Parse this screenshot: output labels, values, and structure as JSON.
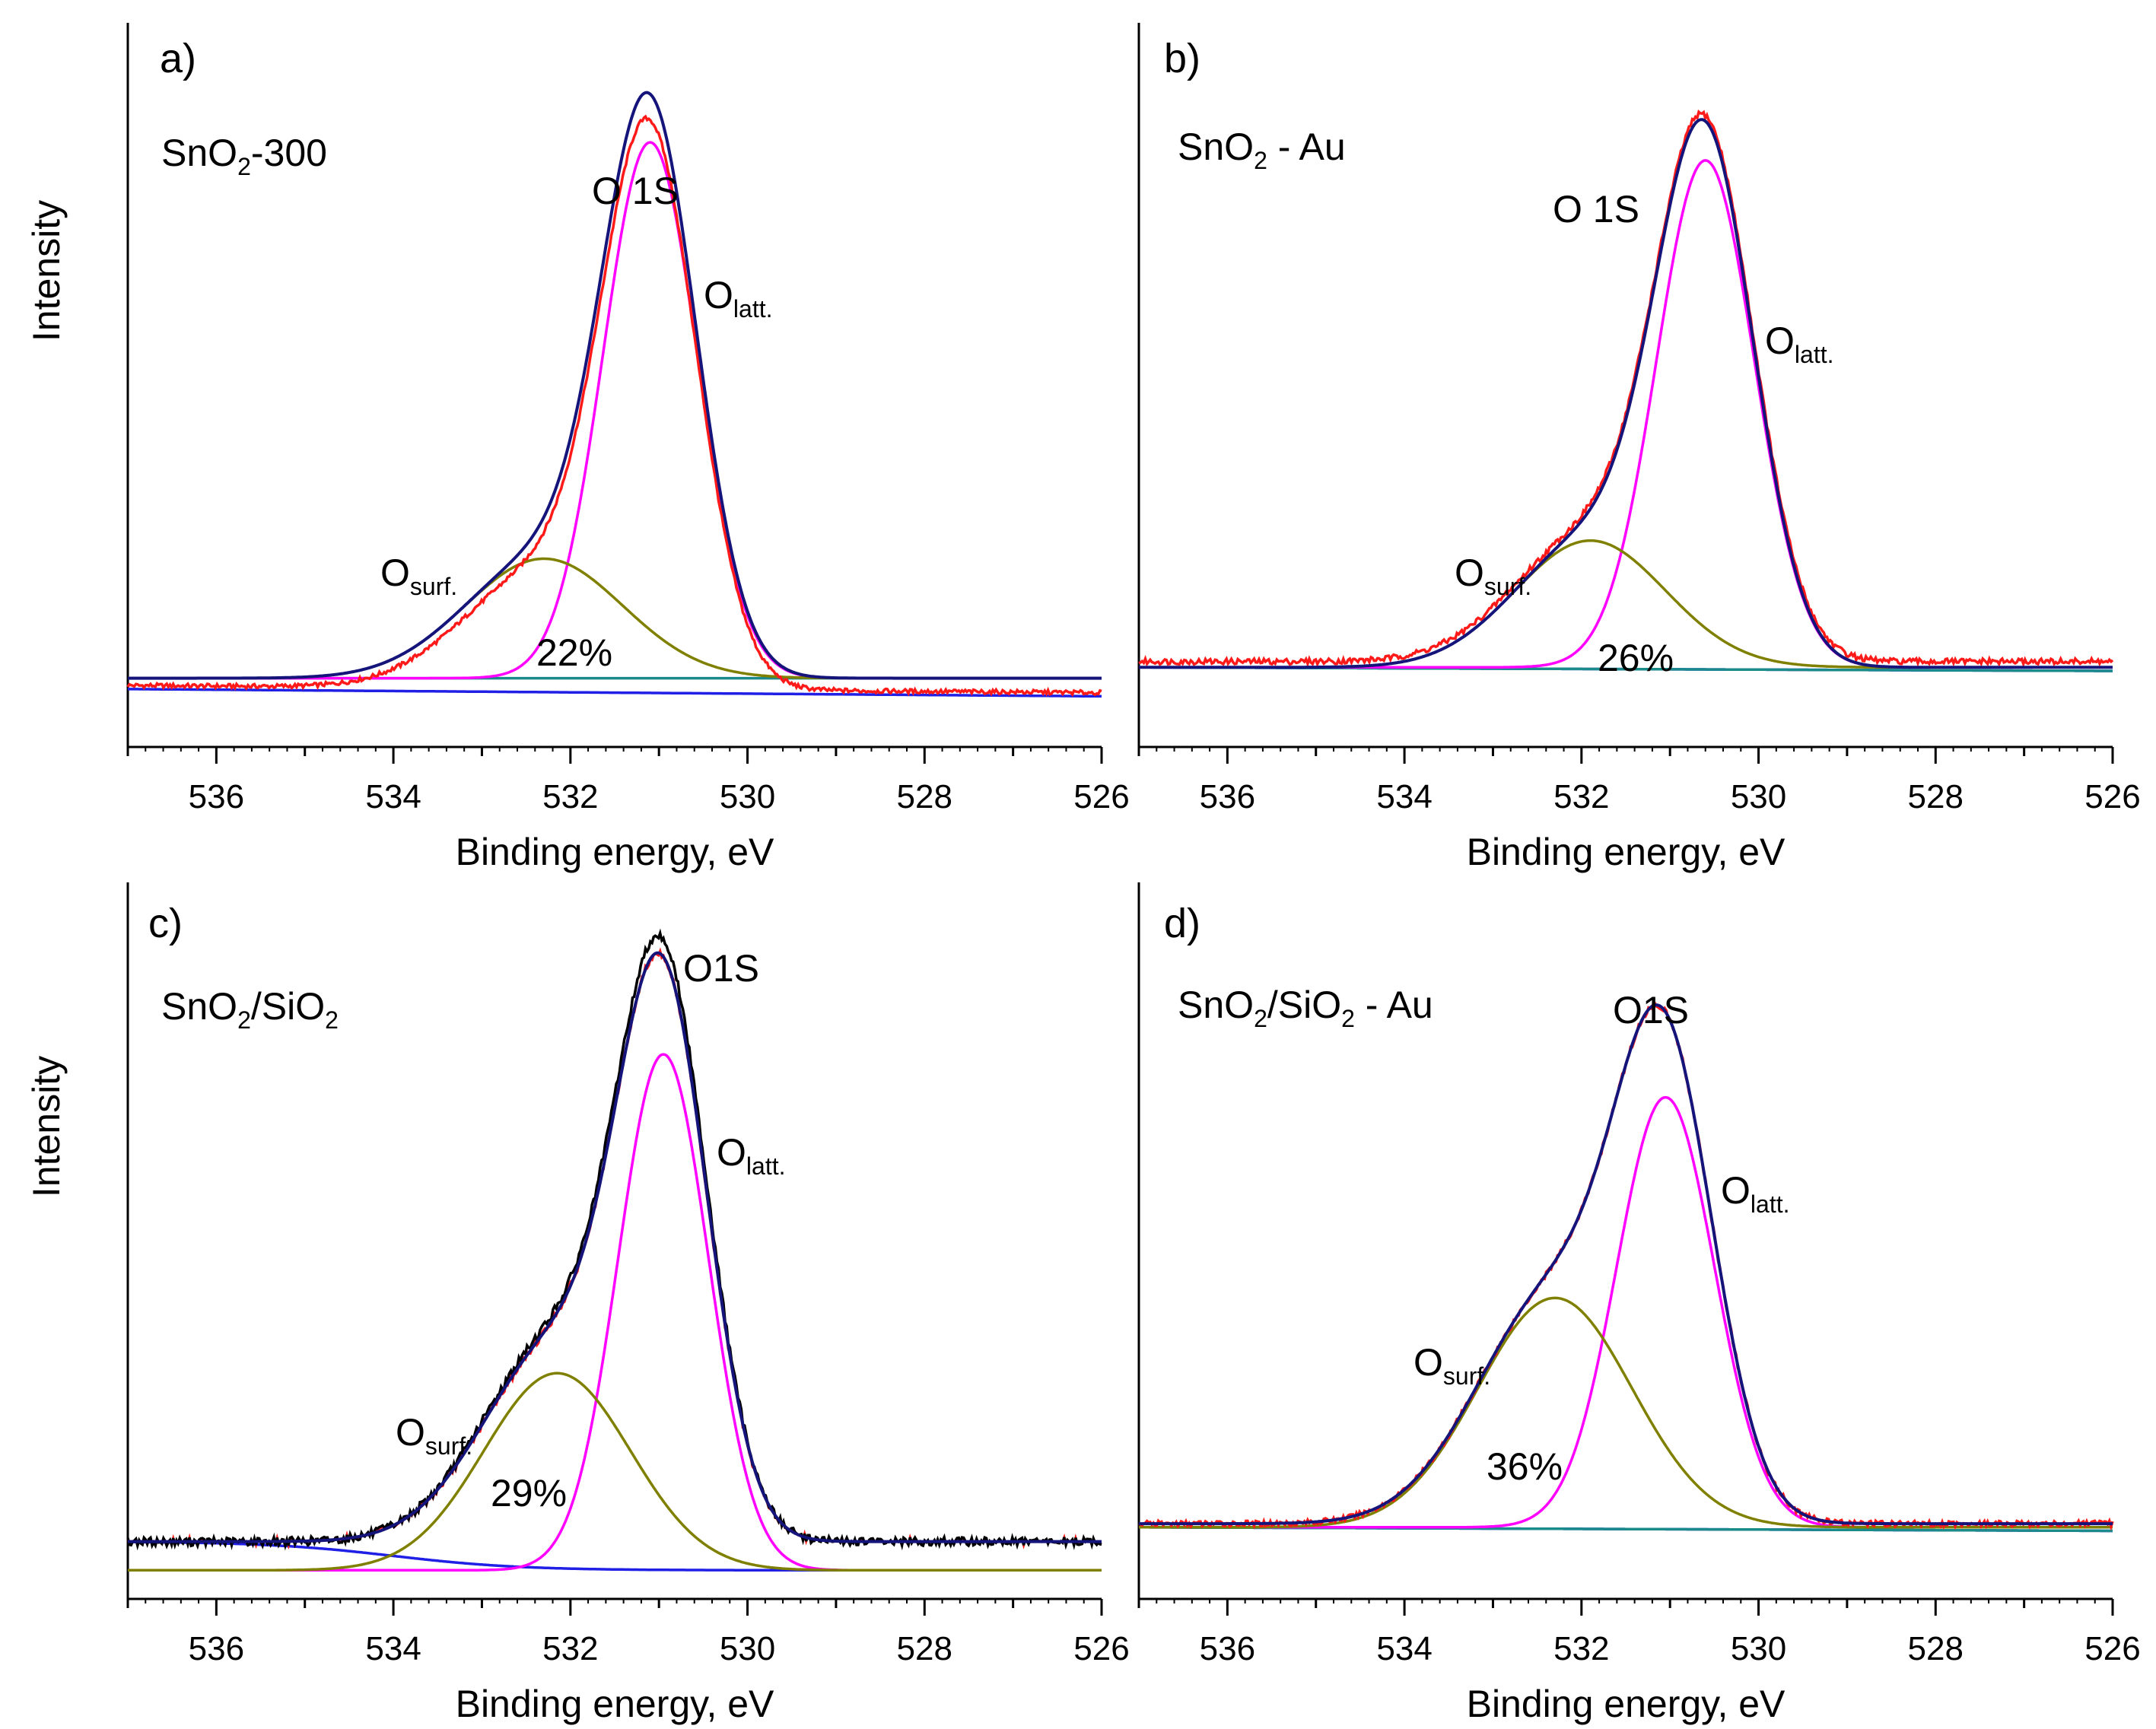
{
  "figure": {
    "y_axis_title": "Intensity",
    "x_axis_title": "Binding energy, eV"
  },
  "chart_data": [
    {
      "type": "line",
      "panel": "a)",
      "sample": {
        "main": "SnO",
        "sub": "2",
        "rest": "-300"
      },
      "peak_label": "O 1S",
      "latt_label": {
        "main": "O",
        "sub": "latt."
      },
      "surf_label": {
        "main": "O",
        "sub": "surf."
      },
      "surf_percent": "22%",
      "xlabel": "Binding energy, eV",
      "ylabel": "Intensity",
      "xlim": [
        537,
        526
      ],
      "xticks": [
        "536",
        "534",
        "532",
        "530",
        "528",
        "526"
      ],
      "ylim": [
        0,
        1
      ],
      "series": [
        {
          "name": "baseline",
          "kind": "line",
          "color": "#1f1fe6",
          "start": 0.08,
          "end": 0.07
        },
        {
          "name": "baseline-2",
          "kind": "line",
          "color": "#1a8a8a",
          "start": 0.095,
          "end": 0.095
        },
        {
          "name": "O latt.",
          "kind": "gauss",
          "color": "#ff00ff",
          "center": 531.1,
          "fwhm": 1.25,
          "amp": 0.74,
          "base": 0.095
        },
        {
          "name": "O surf.",
          "kind": "gauss",
          "color": "#808000",
          "center": 532.3,
          "fwhm": 2.1,
          "amp": 0.165,
          "base": 0.095
        },
        {
          "name": "experimental",
          "kind": "sum",
          "color": "#ff1a1a",
          "base_start": 0.085,
          "base_end": 0.075,
          "scale": 0.975,
          "noise": 0.003
        },
        {
          "name": "envelope",
          "kind": "sum",
          "color": "#14147a",
          "base": 0.095,
          "scale": 1.0
        }
      ]
    },
    {
      "type": "line",
      "panel": "b)",
      "sample": {
        "main": "SnO",
        "sub": "2",
        "rest": " - Au"
      },
      "peak_label": "O 1S",
      "latt_label": {
        "main": "O",
        "sub": "latt."
      },
      "surf_label": {
        "main": "O",
        "sub": "surf."
      },
      "surf_percent": "26%",
      "xlabel": "Binding energy, eV",
      "ylabel": "Intensity",
      "xlim": [
        537,
        526
      ],
      "xticks": [
        "536",
        "534",
        "532",
        "530",
        "528",
        "526"
      ],
      "ylim": [
        0,
        1
      ],
      "series": [
        {
          "name": "baseline",
          "kind": "line",
          "color": "#1f1fe6",
          "start": 0.11,
          "end": 0.105
        },
        {
          "name": "baseline-2",
          "kind": "line",
          "color": "#1a8a8a",
          "start": 0.11,
          "end": 0.105
        },
        {
          "name": "O latt.",
          "kind": "gauss",
          "color": "#ff00ff",
          "center": 530.6,
          "fwhm": 1.3,
          "amp": 0.7,
          "base": 0.11
        },
        {
          "name": "O surf.",
          "kind": "gauss",
          "color": "#808000",
          "center": 531.9,
          "fwhm": 2.0,
          "amp": 0.175,
          "base": 0.11
        },
        {
          "name": "experimental",
          "kind": "sum",
          "color": "#ff1a1a",
          "base": 0.118,
          "scale": 1.0,
          "noise": 0.004
        },
        {
          "name": "envelope",
          "kind": "sum",
          "color": "#14147a",
          "base": 0.11,
          "scale": 1.0
        }
      ]
    },
    {
      "type": "line",
      "panel": "c)",
      "sample": {
        "main": "SnO",
        "sub": "2",
        "rest": "/SiO",
        "sub2": "2"
      },
      "peak_label": "O1S",
      "latt_label": {
        "main": "O",
        "sub": "latt."
      },
      "surf_label": {
        "main": "O",
        "sub": "surf."
      },
      "surf_percent": "29%",
      "xlabel": "Binding energy, eV",
      "ylabel": "Intensity",
      "xlim": [
        537,
        526
      ],
      "xticks": [
        "536",
        "534",
        "532",
        "530",
        "528",
        "526"
      ],
      "ylim": [
        0,
        1
      ],
      "series": [
        {
          "name": "baseline",
          "kind": "curve",
          "color": "#1f1fe6"
        },
        {
          "name": "O latt.",
          "kind": "gauss",
          "color": "#ff00ff",
          "center": 530.95,
          "fwhm": 1.2,
          "amp": 0.72,
          "base": 0.04
        },
        {
          "name": "O surf.",
          "kind": "gauss",
          "color": "#808000",
          "center": 532.15,
          "fwhm": 1.95,
          "amp": 0.275,
          "base": 0.04
        },
        {
          "name": "experimental",
          "kind": "sum",
          "color": "#ff1a1a",
          "base": 0.08,
          "scale": 1.0,
          "noise": 0.005
        },
        {
          "name": "black-fit",
          "kind": "sum",
          "color": "#000000",
          "base": 0.08,
          "scale": 1.03,
          "noise": 0.006
        },
        {
          "name": "envelope",
          "kind": "sum",
          "color": "#14147a",
          "base": 0.08,
          "scale": 1.0
        }
      ]
    },
    {
      "type": "line",
      "panel": "d)",
      "sample": {
        "main": "SnO",
        "sub": "2",
        "rest": "/SiO",
        "sub2": "2",
        "rest2": " - Au"
      },
      "peak_label": "O1S",
      "latt_label": {
        "main": "O",
        "sub": "latt."
      },
      "surf_label": {
        "main": "O",
        "sub": "surf."
      },
      "surf_percent": "36%",
      "xlabel": "Binding energy, eV",
      "ylabel": "Intensity",
      "xlim": [
        537,
        526
      ],
      "xticks": [
        "536",
        "534",
        "532",
        "530",
        "528",
        "526"
      ],
      "ylim": [
        0,
        1
      ],
      "series": [
        {
          "name": "baseline",
          "kind": "line",
          "color": "#1f1fe6",
          "start": 0.1,
          "end": 0.095
        },
        {
          "name": "baseline-2",
          "kind": "line",
          "color": "#1a8a8a",
          "start": 0.1,
          "end": 0.095
        },
        {
          "name": "O latt.",
          "kind": "gauss",
          "color": "#ff00ff",
          "center": 531.05,
          "fwhm": 1.3,
          "amp": 0.6,
          "base": 0.1
        },
        {
          "name": "O surf.",
          "kind": "gauss",
          "color": "#808000",
          "center": 532.3,
          "fwhm": 2.05,
          "amp": 0.32,
          "base": 0.1
        },
        {
          "name": "experimental",
          "kind": "sum",
          "color": "#ff1a1a",
          "base": 0.105,
          "scale": 1.0,
          "noise": 0.004
        },
        {
          "name": "envelope",
          "kind": "sum",
          "color": "#14147a",
          "base": 0.105,
          "scale": 1.0
        }
      ]
    }
  ]
}
